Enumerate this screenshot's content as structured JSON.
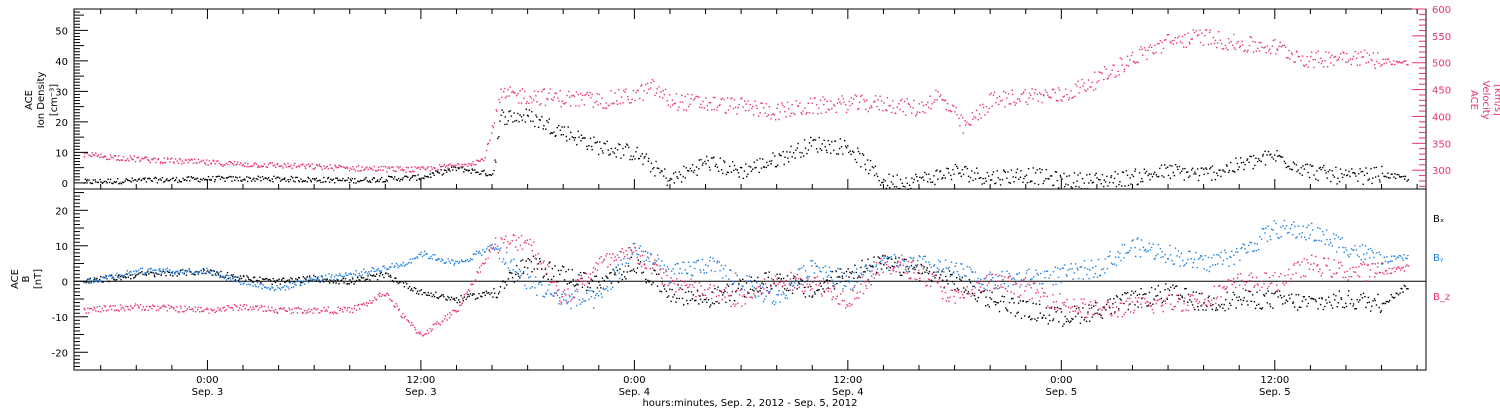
{
  "colors": {
    "black": "#000000",
    "pink": "#e8336b",
    "blue": "#1f7fe0"
  },
  "chart_data": [
    {
      "type": "scatter",
      "panel": "top",
      "ylabel_left": [
        "ACE",
        "Ion Density",
        "[cm⁻³]"
      ],
      "ylabel_right": [
        "ACE",
        "Velocity",
        "[km/s]"
      ],
      "ylim_left": [
        -2,
        57
      ],
      "ylim_right": [
        265,
        600
      ],
      "yticks_left": [
        0,
        10,
        20,
        30,
        40,
        50
      ],
      "yticks_right": [
        300,
        350,
        400,
        450,
        500,
        550,
        600
      ],
      "x_unit": "hours since 2012-09-02 00:00",
      "xlim": [
        16.5,
        92.5
      ],
      "series": [
        {
          "axis": "left",
          "color": "#000000",
          "x": [
            17,
            20,
            24,
            28,
            32,
            36,
            38,
            39,
            40,
            40.5,
            42,
            44,
            46,
            48,
            50,
            52,
            54,
            56,
            58,
            60,
            62,
            64,
            66,
            68,
            70,
            72,
            74,
            76,
            78,
            80,
            82,
            84,
            86,
            88,
            90,
            91.5
          ],
          "y": [
            0.5,
            1,
            1.5,
            1.5,
            1,
            2,
            5,
            4,
            3,
            22,
            22,
            17,
            12,
            10,
            1,
            7,
            4,
            8,
            13,
            12,
            0.5,
            1,
            4,
            2,
            3,
            1,
            1,
            2,
            4,
            3,
            6,
            9,
            4,
            2,
            3,
            1.5
          ]
        },
        {
          "axis": "right",
          "color": "#e8336b",
          "x": [
            17,
            20,
            24,
            28,
            32,
            36,
            38,
            39.5,
            40.5,
            42,
            44,
            46,
            48,
            49,
            50,
            52,
            54,
            56,
            58,
            60,
            62,
            64,
            65,
            66,
            66.5,
            67,
            68,
            70,
            72,
            74,
            76,
            78,
            80,
            82,
            84,
            86,
            88,
            90,
            91.5
          ],
          "y": [
            330,
            322,
            315,
            310,
            305,
            302,
            310,
            320,
            440,
            440,
            435,
            430,
            440,
            455,
            430,
            425,
            420,
            410,
            420,
            425,
            425,
            415,
            440,
            405,
            380,
            395,
            430,
            440,
            440,
            470,
            510,
            540,
            550,
            535,
            530,
            505,
            515,
            505,
            500
          ]
        }
      ]
    },
    {
      "type": "scatter",
      "panel": "bottom",
      "ylabel": [
        "ACE",
        "B",
        "[nT]"
      ],
      "ylim": [
        -25,
        26
      ],
      "yticks": [
        -20,
        -10,
        0,
        10,
        20
      ],
      "x_unit": "hours since 2012-09-02 00:00",
      "xlim": [
        16.5,
        92.5
      ],
      "xticks": [
        24,
        36,
        48,
        60,
        72,
        84
      ],
      "xtick_time_labels": [
        "0:00",
        "12:00",
        "0:00",
        "12:00",
        "0:00",
        "12:00"
      ],
      "xtick_date_labels": [
        "Sep. 3",
        "Sep. 3",
        "Sep. 4",
        "Sep. 4",
        "Sep. 5",
        "Sep. 5"
      ],
      "xlabel": "hours:minutes, Sep.  2, 2012 - Sep.  5, 2012",
      "series": [
        {
          "name": "Bₓ",
          "color": "#000000",
          "x": [
            17,
            20,
            24,
            26,
            28,
            30,
            32,
            34,
            36,
            38,
            40,
            42,
            44,
            46,
            48,
            50,
            52,
            54,
            56,
            58,
            60,
            62,
            64,
            66,
            68,
            70,
            72,
            74,
            76,
            78,
            80,
            82,
            84,
            86,
            88,
            90,
            91.5
          ],
          "y": [
            0,
            2,
            3,
            1,
            0,
            1,
            0,
            2,
            -3,
            -5,
            -3,
            5,
            2,
            -1,
            5,
            -3,
            -5,
            -2,
            1,
            -3,
            3,
            5,
            3,
            0,
            -5,
            -8,
            -10,
            -8,
            -5,
            -3,
            -6,
            -5,
            -5,
            -6,
            -5,
            -6,
            -1
          ]
        },
        {
          "name": "Bᵧ",
          "color": "#1f7fe0",
          "x": [
            17,
            20,
            24,
            26,
            28,
            30,
            32,
            34,
            35,
            36,
            38,
            40,
            42,
            44,
            46,
            48,
            50,
            52,
            54,
            56,
            58,
            60,
            62,
            64,
            66,
            68,
            70,
            72,
            74,
            76,
            78,
            80,
            82,
            84,
            86,
            88,
            90,
            91.5
          ],
          "y": [
            0,
            3,
            3,
            0,
            -2,
            1,
            2,
            4,
            5,
            8,
            5,
            10,
            0,
            -5,
            -5,
            10,
            2,
            5,
            0,
            -5,
            5,
            0,
            5,
            5,
            3,
            0,
            1,
            2,
            4,
            10,
            8,
            5,
            8,
            15,
            14,
            10,
            6,
            7
          ]
        },
        {
          "name": "B_z",
          "color": "#e8336b",
          "x": [
            17,
            20,
            24,
            26,
            28,
            30,
            32,
            33,
            34,
            35,
            36,
            38,
            40,
            42,
            44,
            46,
            48,
            50,
            52,
            54,
            56,
            58,
            60,
            62,
            64,
            66,
            68,
            70,
            72,
            74,
            76,
            78,
            80,
            82,
            84,
            86,
            88,
            90,
            91.5
          ],
          "y": [
            -8,
            -7,
            -8,
            -7,
            -8,
            -8,
            -8,
            -6,
            -3,
            -10,
            -15,
            -8,
            10,
            12,
            -5,
            5,
            8,
            0,
            -3,
            -5,
            0,
            0,
            -5,
            5,
            3,
            -5,
            0,
            -2,
            -6,
            -8,
            -7,
            -6,
            -5,
            0,
            0,
            5,
            3,
            3,
            4
          ]
        }
      ]
    }
  ]
}
